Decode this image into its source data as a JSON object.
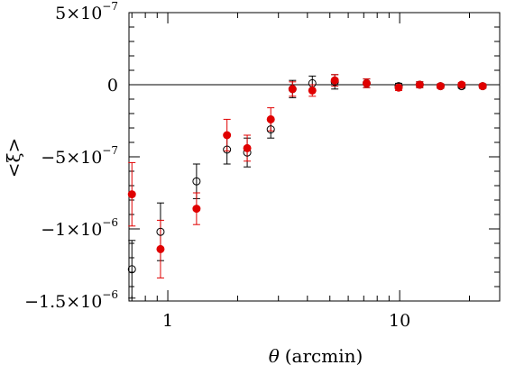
{
  "chart_data": {
    "type": "scatter",
    "title": "",
    "xlabel_symbol": "θ",
    "xlabel": "(arcmin)",
    "ylabel": "<ξ>",
    "x_scale": "log",
    "xlim": [
      0.68,
      27
    ],
    "ylim": [
      -1.5e-06,
      5e-07
    ],
    "x_ticks": [
      {
        "value": 1,
        "label": "1"
      },
      {
        "value": 10,
        "label": "10"
      }
    ],
    "y_ticks": [
      {
        "value": 5e-07,
        "mantissa": "5×10",
        "exp": "−7"
      },
      {
        "value": 0,
        "mantissa": "0",
        "exp": ""
      },
      {
        "value": -5e-07,
        "mantissa": "−5×10",
        "exp": "−7"
      },
      {
        "value": -1e-06,
        "mantissa": "−1×10",
        "exp": "−6"
      },
      {
        "value": -1.5e-06,
        "mantissa": "−1.5×10",
        "exp": "−6"
      }
    ],
    "grid": false,
    "zero_line": true,
    "series": [
      {
        "style": "open-circle",
        "color": "#000000",
        "points": [
          {
            "x": 0.7,
            "y": -1.28e-06,
            "err": 2e-07
          },
          {
            "x": 0.93,
            "y": -1.02e-06,
            "err": 2e-07
          },
          {
            "x": 1.33,
            "y": -6.7e-07,
            "err": 1.2e-07
          },
          {
            "x": 1.8,
            "y": -4.5e-07,
            "err": 1e-07
          },
          {
            "x": 2.2,
            "y": -4.7e-07,
            "err": 1e-07
          },
          {
            "x": 2.78,
            "y": -3.1e-07,
            "err": 6e-08
          },
          {
            "x": 3.45,
            "y": -3e-08,
            "err": 6e-08
          },
          {
            "x": 4.2,
            "y": 1e-08,
            "err": 5e-08
          },
          {
            "x": 5.25,
            "y": 2e-08,
            "err": 5e-08
          },
          {
            "x": 7.2,
            "y": 1e-08,
            "err": 3e-08
          },
          {
            "x": 9.9,
            "y": -1e-08,
            "err": 2e-08
          },
          {
            "x": 12.2,
            "y": 0,
            "err": 2e-08
          },
          {
            "x": 15.0,
            "y": -1e-08,
            "err": 1.5e-08
          },
          {
            "x": 18.5,
            "y": -1e-08,
            "err": 1.5e-08
          },
          {
            "x": 22.8,
            "y": -1e-08,
            "err": 1.5e-08
          }
        ]
      },
      {
        "style": "filled-circle",
        "color": "#e00000",
        "points": [
          {
            "x": 0.7,
            "y": -7.6e-07,
            "err": 2.2e-07
          },
          {
            "x": 0.93,
            "y": -1.14e-06,
            "err": 2e-07
          },
          {
            "x": 1.33,
            "y": -8.6e-07,
            "err": 1.1e-07
          },
          {
            "x": 1.8,
            "y": -3.5e-07,
            "err": 1.1e-07
          },
          {
            "x": 2.2,
            "y": -4.4e-07,
            "err": 9e-08
          },
          {
            "x": 2.78,
            "y": -2.4e-07,
            "err": 8e-08
          },
          {
            "x": 3.45,
            "y": -3e-08,
            "err": 5e-08
          },
          {
            "x": 4.2,
            "y": -4e-08,
            "err": 4e-08
          },
          {
            "x": 5.25,
            "y": 3e-08,
            "err": 4e-08
          },
          {
            "x": 7.2,
            "y": 1e-08,
            "err": 3e-08
          },
          {
            "x": 9.9,
            "y": -2e-08,
            "err": 2e-08
          },
          {
            "x": 12.2,
            "y": 0,
            "err": 2e-08
          },
          {
            "x": 15.0,
            "y": -1e-08,
            "err": 1.5e-08
          },
          {
            "x": 18.5,
            "y": 0,
            "err": 1.5e-08
          },
          {
            "x": 22.8,
            "y": -1e-08,
            "err": 1.5e-08
          }
        ]
      }
    ]
  }
}
